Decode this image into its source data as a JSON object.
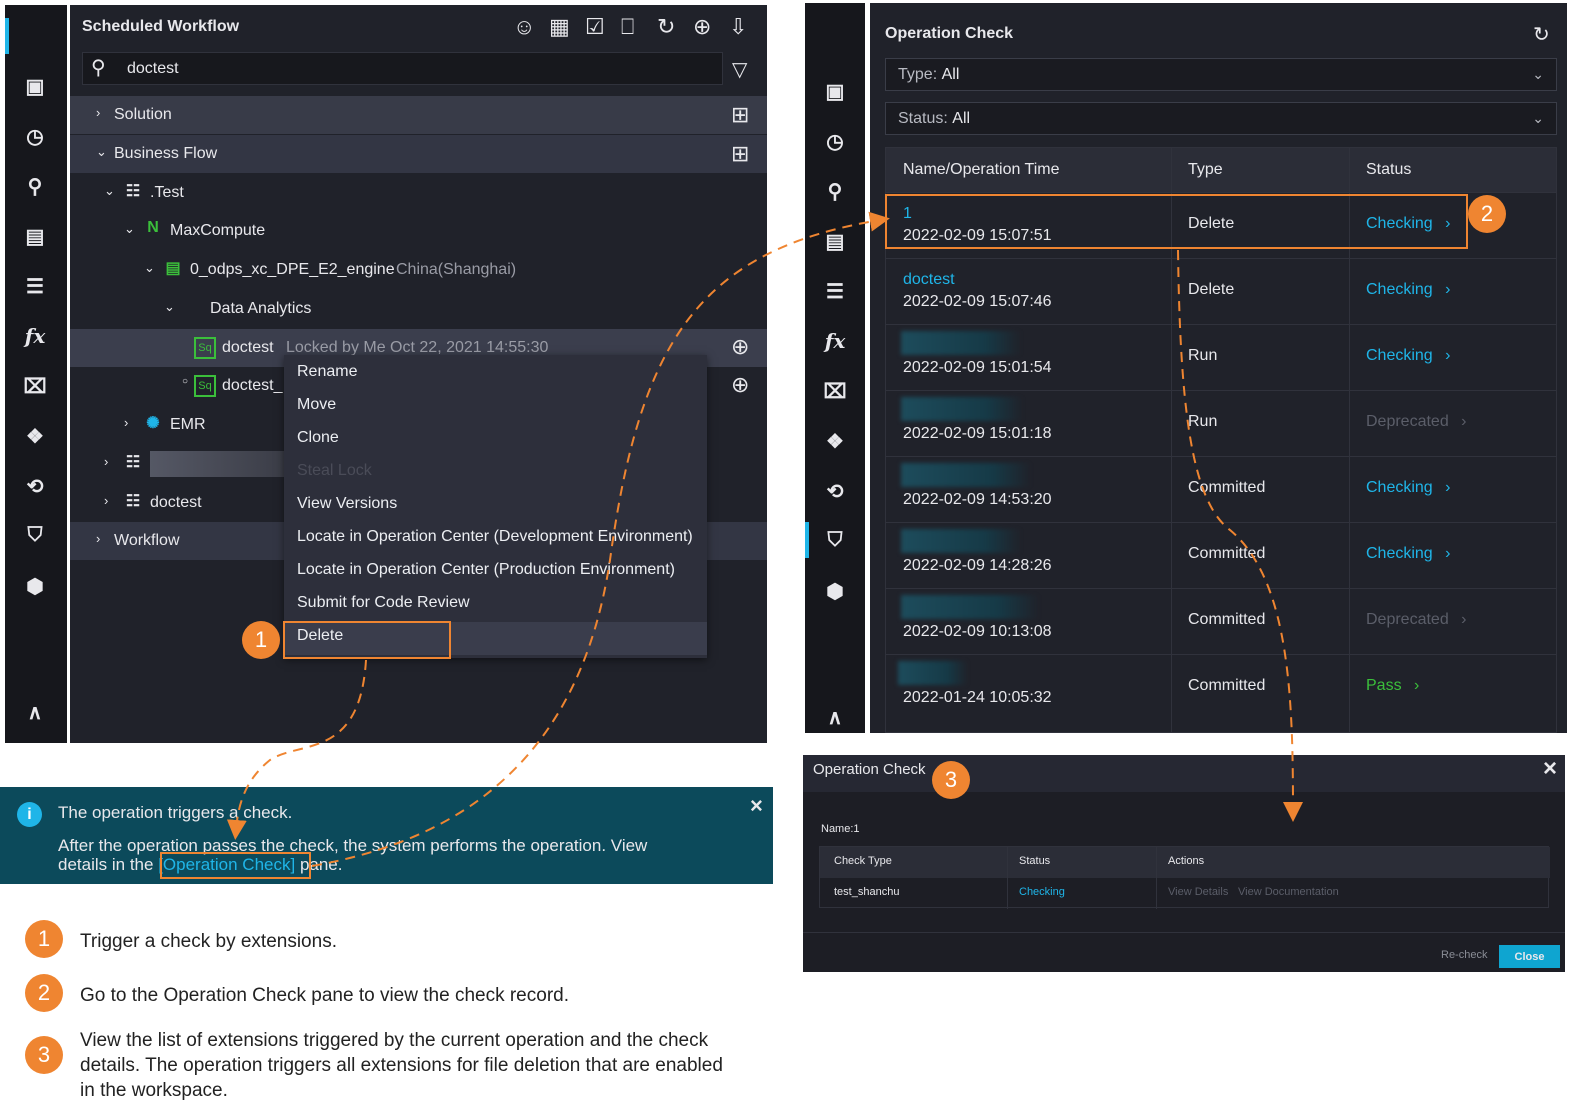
{
  "left_panel": {
    "title": "Scheduled Workflow",
    "toolbar_icons": [
      "user-icon",
      "search-doc-icon",
      "checklist-icon",
      "new-file-icon",
      "refresh-icon",
      "crosshair-icon",
      "import-icon"
    ],
    "search": {
      "value": "doctest",
      "filter_icon": "filter-icon"
    },
    "sidebar_icons": [
      "code-icon",
      "briefcase-icon",
      "clock-icon",
      "search-icon",
      "table-icon",
      "list-settings-icon",
      "function-icon",
      "trash-icon",
      "puzzle-icon",
      "cursor-icon",
      "shield-icon",
      "cube-icon",
      "graph-icon"
    ],
    "tree": [
      {
        "label": "Solution",
        "expanded": false
      },
      {
        "label": "Business Flow",
        "expanded": true
      },
      {
        "label": ".Test",
        "expanded": true
      },
      {
        "label": "MaxCompute",
        "expanded": true
      },
      {
        "label": "0_odps_xc_DPE_E2_engine",
        "meta": "China(Shanghai)",
        "expanded": true
      },
      {
        "label": "Data Analytics",
        "expanded": true
      },
      {
        "label": "doctest",
        "meta": "Locked by Me   Oct 22, 2021 14:55:30",
        "badge": "Sq"
      },
      {
        "label": "doctest_",
        "badge": "Sq"
      },
      {
        "label": "EMR",
        "expanded": false
      },
      {
        "label": "",
        "expanded": false
      },
      {
        "label": "doctest",
        "expanded": false
      },
      {
        "label": "Workflow",
        "expanded": false
      }
    ],
    "context_menu": [
      {
        "label": "Rename"
      },
      {
        "label": "Move"
      },
      {
        "label": "Clone"
      },
      {
        "label": "Steal Lock",
        "disabled": true
      },
      {
        "label": "View Versions"
      },
      {
        "label": "Locate in Operation Center (Development Environment)"
      },
      {
        "label": "Locate in Operation Center (Production Environment)"
      },
      {
        "label": "Submit for Code Review"
      },
      {
        "label": "Delete",
        "highlighted": true
      }
    ]
  },
  "banner": {
    "title": "The operation triggers a check.",
    "body_1": "After the operation passes the check, the system performs the operation. View",
    "body_2a": "details in the",
    "link": "[Operation Check]",
    "body_2b": "pane.",
    "close": "×"
  },
  "right_panel": {
    "title": "Operation Check",
    "type_filter": {
      "label": "Type:",
      "value": "All"
    },
    "status_filter": {
      "label": "Status:",
      "value": "All"
    },
    "columns": [
      "Name/Operation Time",
      "Type",
      "Status"
    ],
    "rows": [
      {
        "name": "1",
        "time": "2022-02-09 15:07:51",
        "type": "Delete",
        "status": "Checking"
      },
      {
        "name": "doctest",
        "time": "2022-02-09 15:07:46",
        "type": "Delete",
        "status": "Checking"
      },
      {
        "name": "",
        "time": "2022-02-09 15:01:54",
        "type": "Run",
        "status": "Checking"
      },
      {
        "name": "",
        "time": "2022-02-09 15:01:18",
        "type": "Run",
        "status": "Deprecated"
      },
      {
        "name": "",
        "time": "2022-02-09 14:53:20",
        "type": "Committed",
        "status": "Checking"
      },
      {
        "name": "",
        "time": "2022-02-09 14:28:26",
        "type": "Committed",
        "status": "Checking"
      },
      {
        "name": "",
        "time": "2022-02-09 10:13:08",
        "type": "Committed",
        "status": "Deprecated"
      },
      {
        "name": "",
        "time": "2022-01-24 10:05:32",
        "type": "Committed",
        "status": "Pass"
      }
    ]
  },
  "dialog": {
    "title": "Operation Check",
    "name_line": "Name:1",
    "columns": [
      "Check Type",
      "Status",
      "Actions"
    ],
    "rows": [
      {
        "check_type": "test_shanchu",
        "status": "Checking",
        "action_1": "View Details",
        "action_2": "View Documentation"
      }
    ],
    "recheck": "Re-check",
    "close_button": "Close",
    "close_x": "×"
  },
  "steps": [
    {
      "num": "1",
      "text": "Trigger a check by extensions."
    },
    {
      "num": "2",
      "text": "Go to the Operation Check pane to view the check record."
    },
    {
      "num": "3",
      "text": "View the list of extensions triggered by the current operation and the check details. The operation triggers all extensions for file deletion that are enabled in the workspace."
    }
  ],
  "colors": {
    "accent": "#1fb5e8",
    "callout": "#ef8531",
    "pass": "#3bbf3b",
    "banner": "#0c4a5b"
  }
}
